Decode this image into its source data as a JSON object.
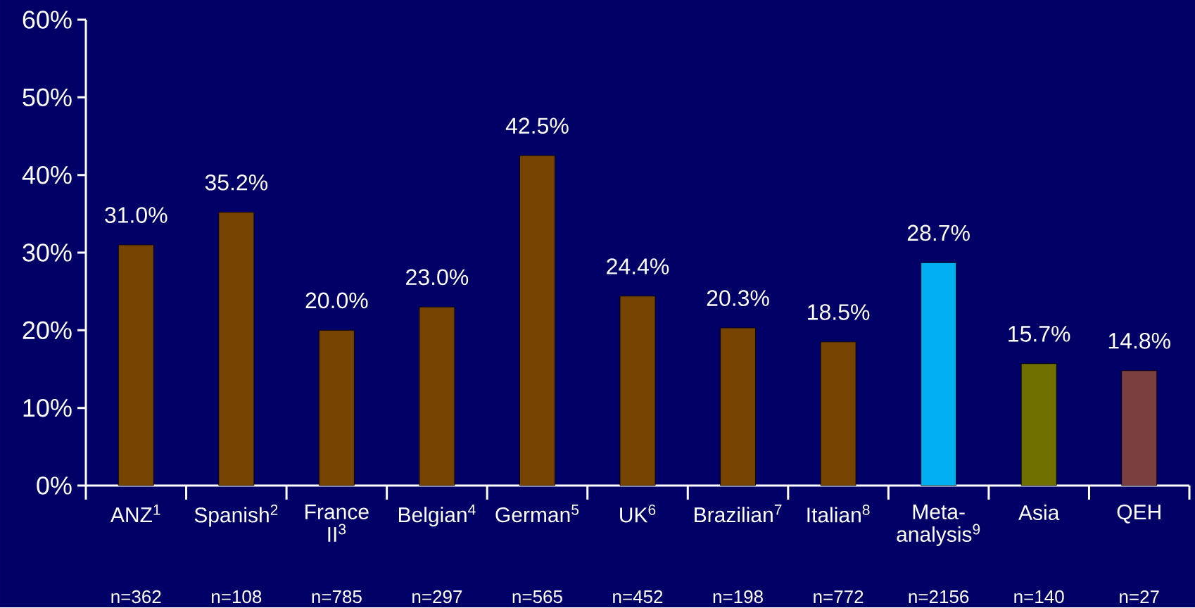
{
  "chart_data": {
    "type": "bar",
    "categories": [
      "ANZ$^{1}$",
      "Spanish$^{2}$",
      "France II$^{3}$",
      "Belgian$^{4}$",
      "German$^{5}$",
      "UK$^{6}$",
      "Brazilian$^{7}$",
      "Italian$^{8}$",
      "Meta-analysis$^{9}$",
      "Asia",
      "QEH"
    ],
    "values": [
      31.0,
      35.2,
      20.0,
      23.0,
      42.5,
      24.4,
      20.3,
      18.5,
      28.7,
      15.7,
      14.8
    ],
    "colors": [
      "#774400",
      "#774400",
      "#774400",
      "#774400",
      "#774400",
      "#774400",
      "#774400",
      "#774400",
      "#00b0f0",
      "#707000",
      "#7b3f3f"
    ],
    "value_labels": [
      "31.0%",
      "35.2%",
      "20.0%",
      "23.0%",
      "42.5%",
      "24.4%",
      "20.3%",
      "18.5%",
      "28.7%",
      "15.7%",
      "14.8%"
    ],
    "ylim": [
      0,
      60
    ],
    "yticks": [
      {
        "value": 0,
        "label": "0%"
      },
      {
        "value": 10,
        "label": "10%"
      },
      {
        "value": 20,
        "label": "20%"
      },
      {
        "value": 30,
        "label": "30%"
      },
      {
        "value": 40,
        "label": "40%"
      },
      {
        "value": 50,
        "label": "50%"
      },
      {
        "value": 60,
        "label": "60%"
      }
    ],
    "annotations": [
      "n=362",
      "n=108",
      "n=785",
      "n=297",
      "n=565",
      "n=452",
      "n=198",
      "n=772",
      "n=2156",
      "n=140",
      "n=27"
    ]
  }
}
